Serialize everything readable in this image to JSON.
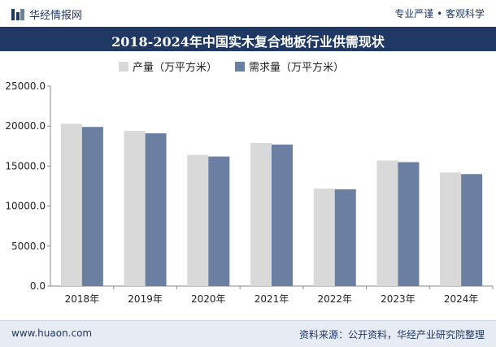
{
  "header": {
    "brand": "华经情报网",
    "slogan": "专业严谨 • 客观科学"
  },
  "footer": {
    "url": "www.huaon.com",
    "source": "资料来源：公开资料，华经产业研究院整理"
  },
  "colors": {
    "series_production": "#d9d9d9",
    "series_demand": "#6b7fa3",
    "title_bar": "#1f3864"
  },
  "chart_data": {
    "type": "bar",
    "title": "2018-2024年中国实木复合地板行业供需现状",
    "xlabel": "",
    "ylabel": "",
    "categories": [
      "2018年",
      "2019年",
      "2020年",
      "2021年",
      "2022年",
      "2023年",
      "2024年"
    ],
    "series": [
      {
        "name": "产量（万平方米）",
        "values": [
          20300,
          19400,
          16400,
          17900,
          12200,
          15700,
          14200
        ]
      },
      {
        "name": "需求量（万平方米）",
        "values": [
          19900,
          19100,
          16200,
          17700,
          12100,
          15500,
          14000
        ]
      }
    ],
    "ylim": [
      0,
      25000
    ],
    "yticks": [
      "0.0",
      "5000.0",
      "10000.0",
      "15000.0",
      "20000.0",
      "25000.0"
    ],
    "grid": false,
    "legend": "top-left"
  }
}
